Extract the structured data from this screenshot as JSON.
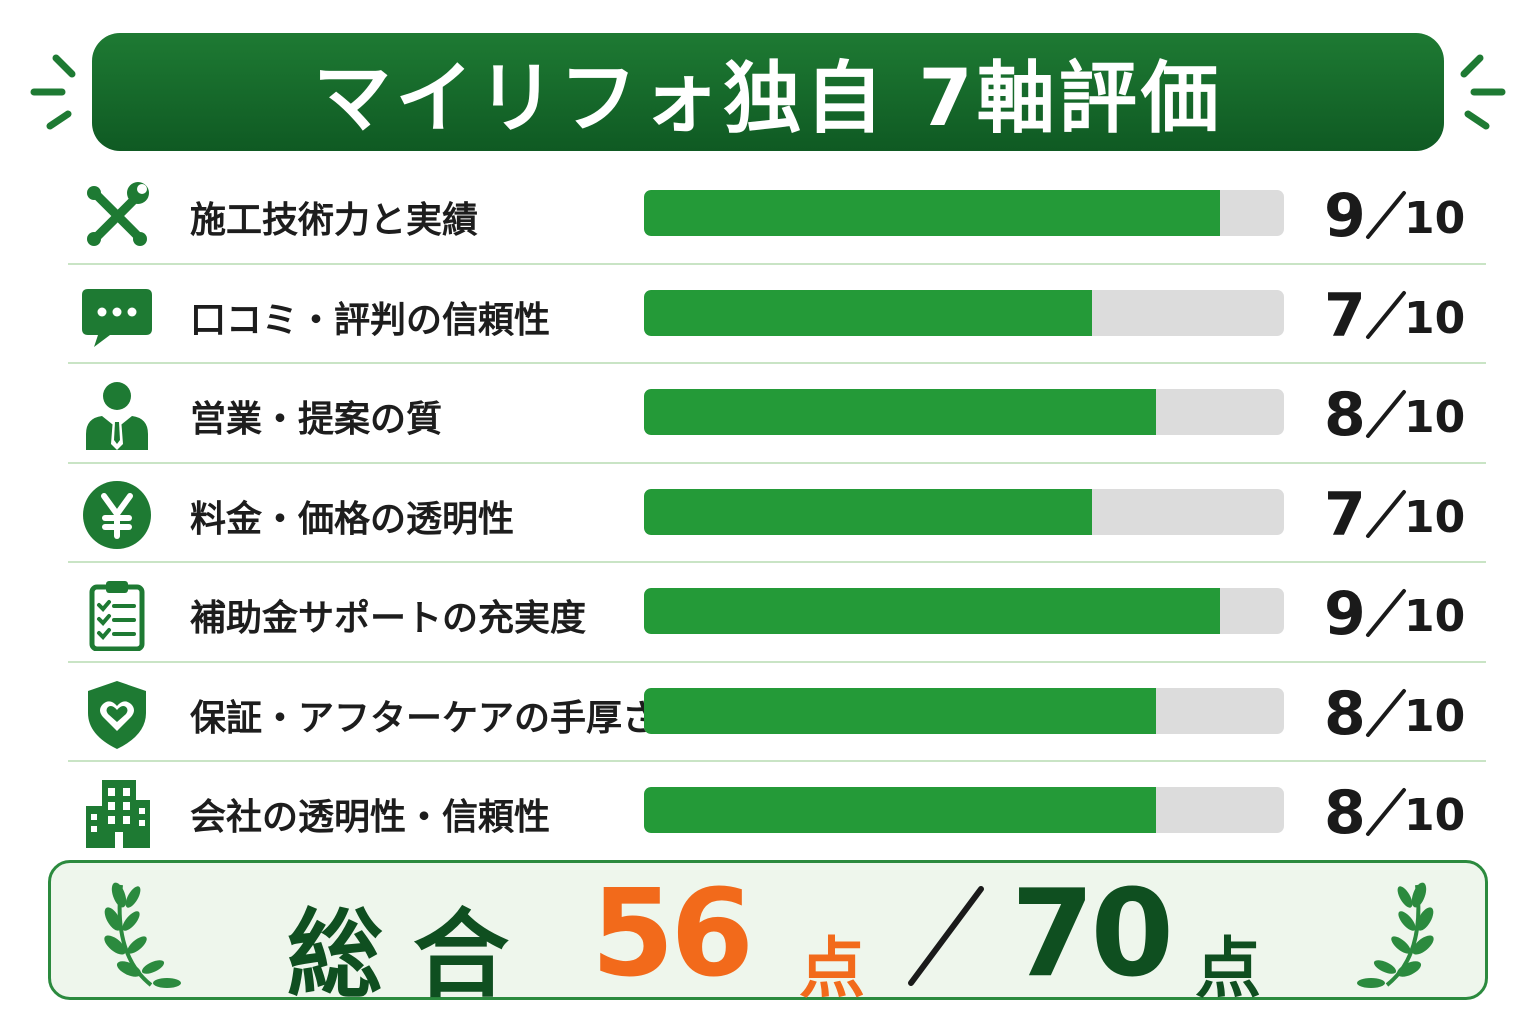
{
  "title": "マイリフォ独自 7軸評価",
  "colors": {
    "banner": "#11612a",
    "bar_fill": "#249a38",
    "bar_track": "#dcdcdc",
    "accent_orange": "#f26a1b",
    "dark_green": "#0f4f20"
  },
  "chart_data": {
    "type": "bar",
    "orientation": "horizontal",
    "title": "マイリフォ独自 7軸評価",
    "categories": [
      "施工技術力と実績",
      "口コミ・評判の信頼性",
      "営業・提案の質",
      "料金・価格の透明性",
      "補助金サポートの充実度",
      "保証・アフターケアの手厚さ",
      "会社の透明性・信頼性"
    ],
    "values": [
      9,
      7,
      8,
      7,
      9,
      8,
      8
    ],
    "max": 10,
    "icons": [
      "tools-icon",
      "chat-bubble-icon",
      "businessman-icon",
      "yen-coin-icon",
      "clipboard-checklist-icon",
      "shield-heart-icon",
      "building-icon"
    ],
    "scores": [
      {
        "value": "9",
        "max": "10"
      },
      {
        "value": "7",
        "max": "10"
      },
      {
        "value": "8",
        "max": "10"
      },
      {
        "value": "7",
        "max": "10"
      },
      {
        "value": "9",
        "max": "10"
      },
      {
        "value": "8",
        "max": "10"
      },
      {
        "value": "8",
        "max": "10"
      }
    ],
    "grid": false,
    "legend": "none"
  },
  "total": {
    "label": "総合",
    "score": "56",
    "unit": "点",
    "max": "70",
    "max_unit": "点"
  }
}
